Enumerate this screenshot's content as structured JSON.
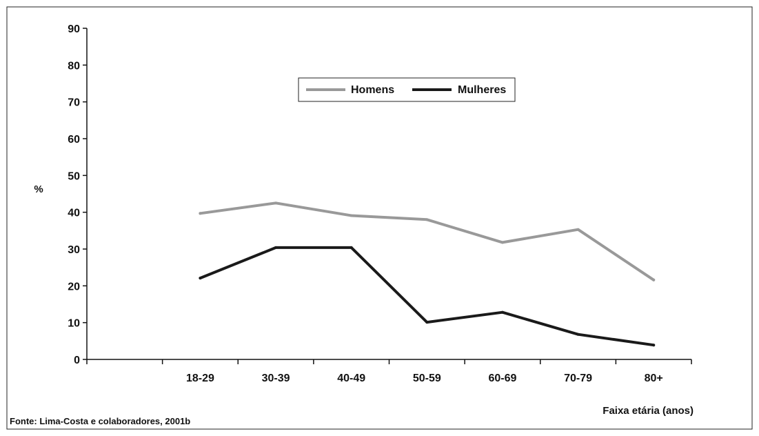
{
  "chart_data": {
    "type": "line",
    "title": "",
    "xlabel": "Faixa etária (anos)",
    "ylabel": "%",
    "categories": [
      "18-29",
      "30-39",
      "40-49",
      "50-59",
      "60-69",
      "70-79",
      "80+"
    ],
    "ylim": [
      0,
      90
    ],
    "yticks": [
      0,
      10,
      20,
      30,
      40,
      50,
      60,
      70,
      80,
      90
    ],
    "grid": false,
    "legend_position": "top-center",
    "series": [
      {
        "name": "Homens",
        "color": "#999999",
        "values": [
          39.7,
          42.5,
          39.1,
          38.0,
          31.8,
          35.3,
          21.6
        ]
      },
      {
        "name": "Mulheres",
        "color": "#1a1a1a",
        "values": [
          22.1,
          30.4,
          30.4,
          10.1,
          12.8,
          6.8,
          3.9
        ]
      }
    ],
    "source": "Fonte: Lima-Costa e colaboradores, 2001b"
  }
}
